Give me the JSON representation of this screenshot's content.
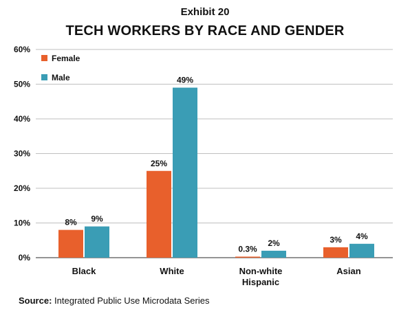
{
  "exhibit_label": "Exhibit 20",
  "title": "TECH WORKERS BY RACE AND GENDER",
  "source": {
    "label": "Source:",
    "text": "Integrated Public Use Microdata Series"
  },
  "colors": {
    "female": "#e8602c",
    "male": "#3a9db5",
    "grid": "#bfbfbf",
    "axis": "#555555"
  },
  "chart_data": {
    "type": "bar",
    "categories": [
      [
        "Black"
      ],
      [
        "White"
      ],
      [
        "Non-white",
        "Hispanic"
      ],
      [
        "Asian"
      ]
    ],
    "series": [
      {
        "name": "Female",
        "values": [
          8,
          25,
          0.3,
          3
        ],
        "labels": [
          "8%",
          "25%",
          "0.3%",
          "3%"
        ]
      },
      {
        "name": "Male",
        "values": [
          9,
          49,
          2,
          4
        ],
        "labels": [
          "9%",
          "49%",
          "2%",
          "4%"
        ]
      }
    ],
    "ylim": [
      0,
      60
    ],
    "yticks": [
      "0%",
      "10%",
      "20%",
      "30%",
      "40%",
      "50%",
      "60%"
    ],
    "grid": true,
    "legend_position": "top-left"
  }
}
